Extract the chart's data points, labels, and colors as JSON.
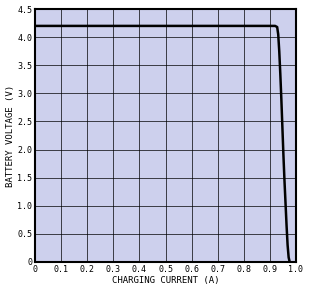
{
  "title": "",
  "xlabel": "CHARGING CURRENT (A)",
  "ylabel": "BATTERY VOLTAGE (V)",
  "xlim": [
    0,
    1.0
  ],
  "ylim": [
    0,
    4.5
  ],
  "xticks": [
    0,
    0.1,
    0.2,
    0.3,
    0.4,
    0.5,
    0.6,
    0.7,
    0.8,
    0.9,
    1.0
  ],
  "yticks": [
    0,
    0.5,
    1.0,
    1.5,
    2.0,
    2.5,
    3.0,
    3.5,
    4.0,
    4.5
  ],
  "xtick_labels": [
    "0",
    "0.1",
    "0.2",
    "0.3",
    "0.4",
    "0.5",
    "0.6",
    "0.7",
    "0.8",
    "0.9",
    "1.0"
  ],
  "ytick_labels": [
    "0",
    "0.5",
    "1.0",
    "1.5",
    "2.0",
    "2.5",
    "3.0",
    "3.5",
    "4.0",
    "4.5"
  ],
  "curve_x": [
    0.0,
    0.92,
    0.928,
    0.932,
    0.936,
    0.94,
    0.944,
    0.948,
    0.952,
    0.956,
    0.96,
    0.964,
    0.968,
    0.972,
    0.976
  ],
  "curve_y": [
    4.2,
    4.2,
    4.18,
    4.05,
    3.75,
    3.35,
    2.9,
    2.4,
    1.9,
    1.45,
    1.05,
    0.65,
    0.3,
    0.08,
    0.0
  ],
  "line_color": "#000000",
  "line_width": 1.8,
  "plot_bg_color": "#cdd0ed",
  "grid_color": "#000000",
  "grid_alpha": 1.0,
  "grid_linewidth": 0.5,
  "background_color": "#ffffff",
  "xlabel_fontsize": 6.5,
  "ylabel_fontsize": 6.5,
  "tick_fontsize": 6.0,
  "font_family": "monospace",
  "spine_linewidth": 1.5
}
